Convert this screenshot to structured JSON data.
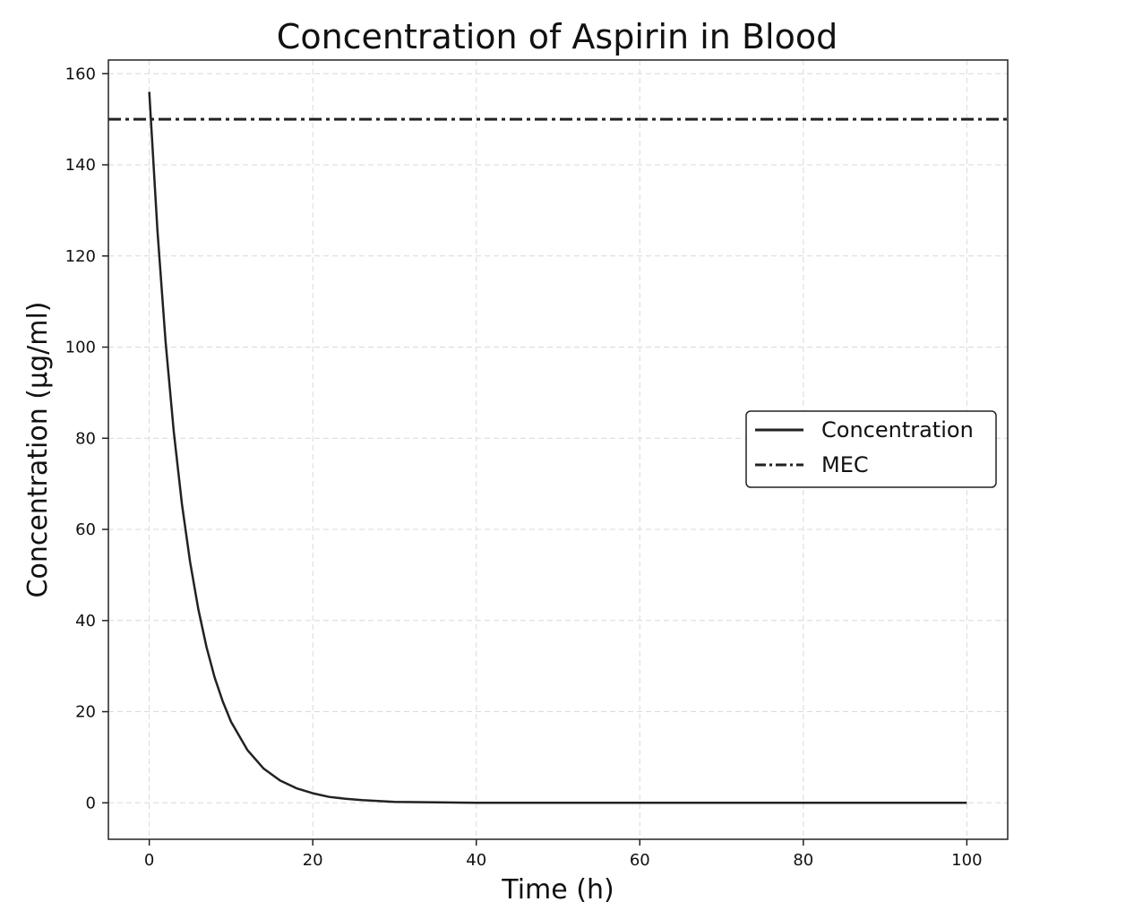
{
  "chart_data": {
    "type": "line",
    "title": "Concentration of Aspirin in Blood",
    "xlabel": "Time (h)",
    "ylabel": "Concentration (µg/ml)",
    "xlim": [
      -5,
      105
    ],
    "ylim": [
      -8,
      163
    ],
    "xticks": [
      0,
      20,
      40,
      60,
      80,
      100
    ],
    "yticks": [
      0,
      20,
      40,
      60,
      80,
      100,
      120,
      140,
      160
    ],
    "xtick_labels": [
      "0",
      "20",
      "40",
      "60",
      "80",
      "100"
    ],
    "ytick_labels": [
      "0",
      "20",
      "40",
      "60",
      "80",
      "100",
      "120",
      "140",
      "160"
    ],
    "grid": true,
    "legend_position": "center-right",
    "series": [
      {
        "name": "Concentration",
        "style": "solid",
        "color": "#222222",
        "x": [
          0,
          1,
          2,
          3,
          4,
          5,
          6,
          7,
          8,
          9,
          10,
          12,
          14,
          16,
          18,
          20,
          22,
          24,
          26,
          28,
          30,
          35,
          40,
          50,
          60,
          70,
          80,
          90,
          100
        ],
        "y": [
          156,
          125.6,
          101.1,
          81.4,
          65.5,
          52.8,
          42.5,
          34.2,
          27.5,
          22.2,
          17.8,
          11.6,
          7.5,
          4.9,
          3.2,
          2.1,
          1.3,
          0.9,
          0.6,
          0.4,
          0.2,
          0.1,
          0,
          0,
          0,
          0,
          0,
          0,
          0
        ]
      },
      {
        "name": "MEC",
        "style": "dashdot",
        "color": "#222222",
        "type": "hline",
        "y": 150
      }
    ]
  }
}
